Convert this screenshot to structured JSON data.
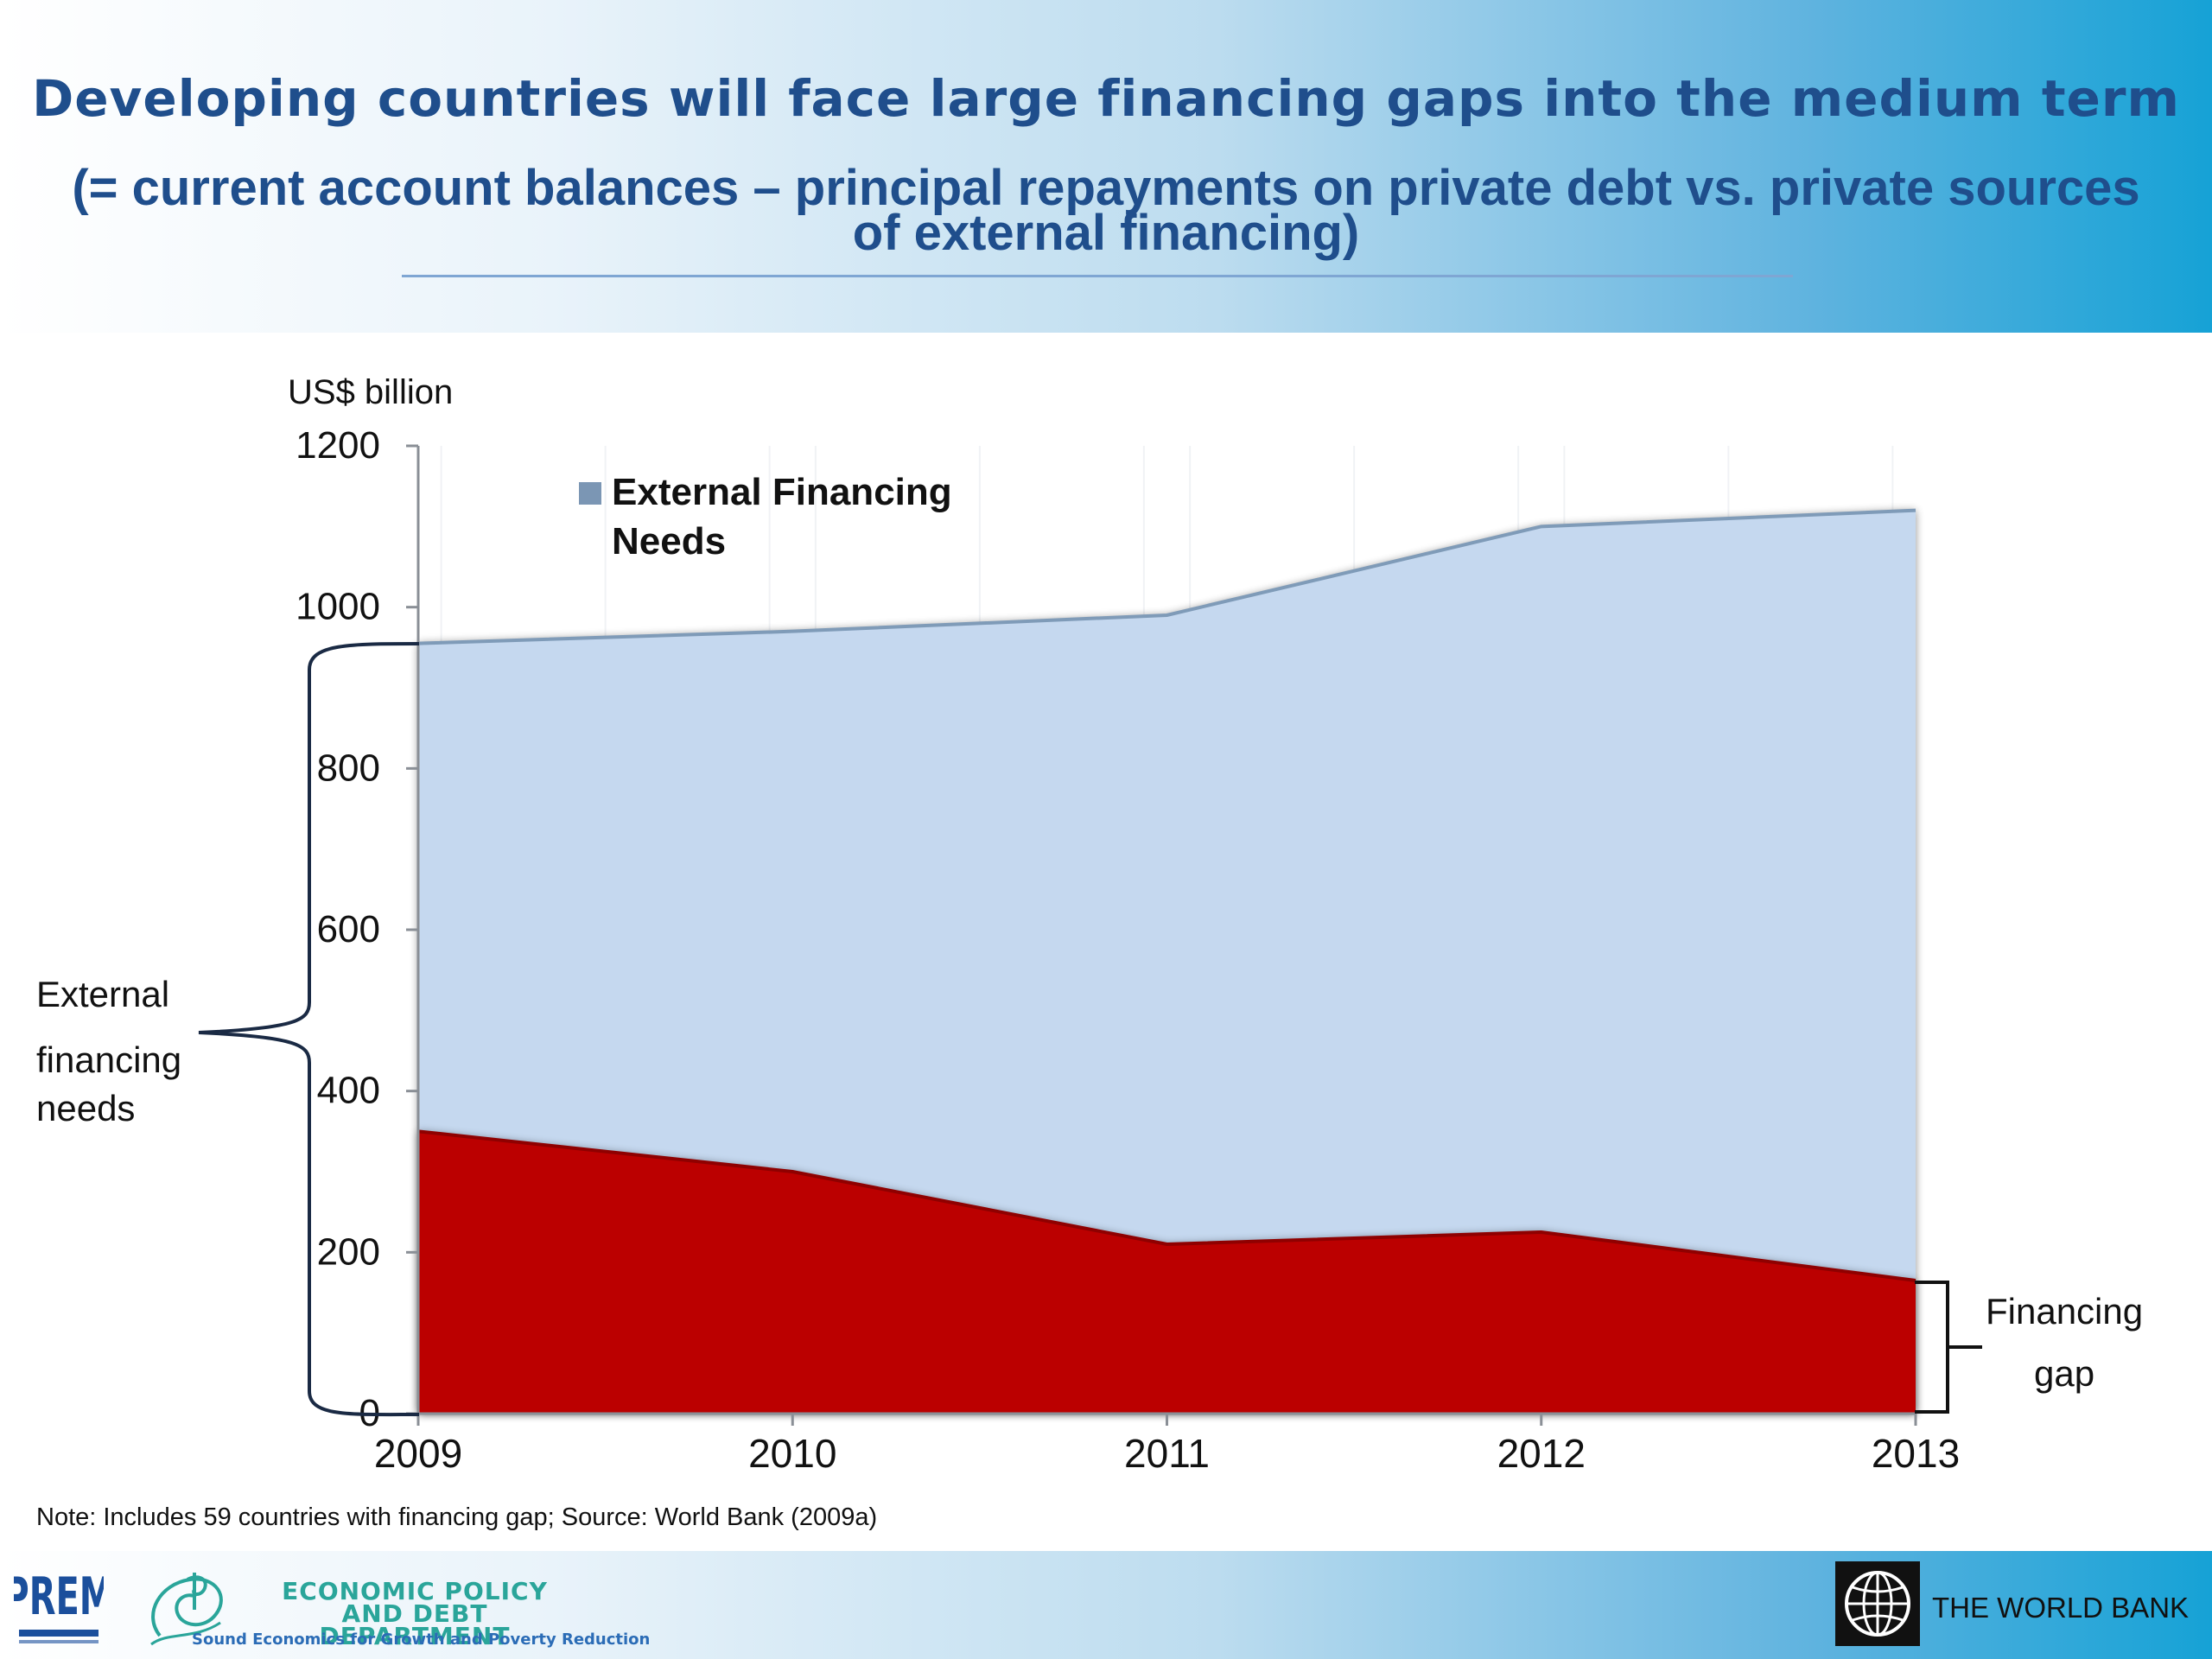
{
  "slide": {
    "title": "Developing countries will face large financing gaps into the medium term",
    "subtitle": "(= current account balances – principal repayments on private debt vs. private sources of external financing)",
    "note": "Note: Includes 59 countries with financing gap; Source: World Bank (2009a)"
  },
  "annotations": {
    "needs_label": [
      "External",
      "financing",
      "needs"
    ],
    "gap_label": [
      "Financing",
      "gap"
    ]
  },
  "footer": {
    "prem_logo_text": "PREM",
    "department_name": "ECONOMIC POLICY AND DEBT DEPARTMENT",
    "department_tagline": "Sound Economics for Growth and Poverty Reduction",
    "worldbank_name": "THE WORLD BANK"
  },
  "chart_data": {
    "type": "area",
    "title": "",
    "xlabel": "",
    "ylabel": "US$ billion",
    "x": [
      "2009",
      "2010",
      "2011",
      "2012",
      "2013"
    ],
    "yticks": [
      "0",
      "200",
      "400",
      "600",
      "800",
      "1000",
      "1200"
    ],
    "ylim": [
      0,
      1200
    ],
    "grid": false,
    "legend": {
      "position": "top-left",
      "entries": [
        "External Financing Needs"
      ]
    },
    "series": [
      {
        "name": "External Financing Needs",
        "values": [
          955,
          970,
          990,
          1100,
          1120
        ],
        "color": "#c5d8ef",
        "edge_color": "#7f9bb8"
      },
      {
        "values": [
          350,
          300,
          210,
          225,
          165
        ],
        "color": "#bb0000",
        "edge_color": "#8f0000"
      }
    ]
  }
}
